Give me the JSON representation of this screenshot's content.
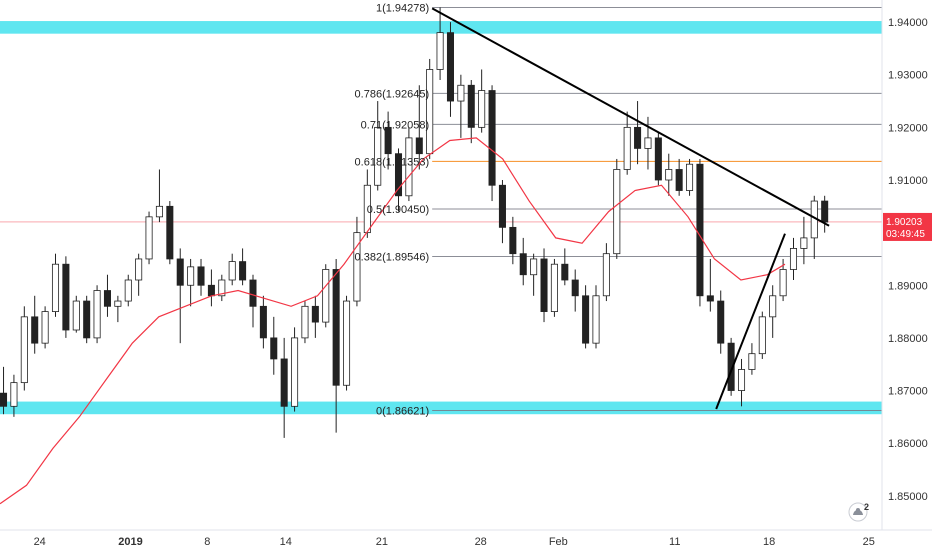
{
  "chart_data": {
    "type": "candlestick",
    "title": "",
    "xlabel": "",
    "ylabel": "",
    "ylim": [
      1.8435,
      1.9442
    ],
    "grid": false,
    "x_tick_labels": [
      "24",
      "2019",
      "8",
      "14",
      "21",
      "28",
      "Feb",
      "11",
      "18",
      "25"
    ],
    "y_tick_labels": [
      "1.94000",
      "1.93000",
      "1.92000",
      "1.91000",
      "1.90000",
      "1.89000",
      "1.88000",
      "1.87000",
      "1.86000",
      "1.85000"
    ],
    "y_ticks": [
      1.94,
      1.93,
      1.92,
      1.91,
      1.9,
      1.89,
      1.88,
      1.87,
      1.86,
      1.85
    ],
    "current_price": {
      "value": 1.90203,
      "label": "1.90203",
      "countdown": "03:49:45",
      "color": "#f23645"
    },
    "fib_levels": [
      {
        "ratio": 1,
        "price": 1.94278,
        "label": "1(1.94278)",
        "color": "#787b86"
      },
      {
        "ratio": 0.786,
        "price": 1.92645,
        "label": "0.786(1.92645)",
        "color": "#787b86"
      },
      {
        "ratio": 0.71,
        "price": 1.92058,
        "label": "0.71(1.92058)",
        "color": "#787b86"
      },
      {
        "ratio": 0.618,
        "price": 1.91353,
        "label": "0.618(1.91353)",
        "color": "#f57c00"
      },
      {
        "ratio": 0.5,
        "price": 1.9045,
        "label": "0.5(1.90450)",
        "color": "#787b86"
      },
      {
        "ratio": 0.382,
        "price": 1.89546,
        "label": "0.382(1.89546)",
        "color": "#787b86"
      },
      {
        "ratio": 0,
        "price": 1.86621,
        "label": "0(1.86621)",
        "color": "#787b86"
      }
    ],
    "zones": [
      {
        "from": 1.9378,
        "to": 1.9402,
        "color": "#5fe6f0"
      },
      {
        "from": 1.8655,
        "to": 1.8679,
        "color": "#5fe6f0"
      }
    ],
    "trendlines": [
      {
        "from": [
          0.49,
          1.9426
        ],
        "to": [
          0.94,
          1.9013
        ],
        "color": "#000000"
      },
      {
        "from": [
          0.812,
          1.8665
        ],
        "to": [
          0.89,
          1.8998
        ],
        "color": "#000000"
      }
    ],
    "candles": [
      [
        1.8695,
        1.8745,
        1.8655,
        1.867
      ],
      [
        1.867,
        1.873,
        1.865,
        1.8715
      ],
      [
        1.8715,
        1.886,
        1.87,
        1.884
      ],
      [
        1.884,
        1.888,
        1.877,
        1.879
      ],
      [
        1.879,
        1.886,
        1.878,
        1.885
      ],
      [
        1.885,
        1.896,
        1.884,
        1.894
      ],
      [
        1.894,
        1.8955,
        1.88,
        1.8815
      ],
      [
        1.8815,
        1.888,
        1.881,
        1.887
      ],
      [
        1.887,
        1.888,
        1.879,
        1.88
      ],
      [
        1.88,
        1.89,
        1.879,
        1.889
      ],
      [
        1.889,
        1.892,
        1.884,
        1.886
      ],
      [
        1.886,
        1.888,
        1.883,
        1.887
      ],
      [
        1.887,
        1.892,
        1.886,
        1.891
      ],
      [
        1.891,
        1.896,
        1.888,
        1.895
      ],
      [
        1.895,
        1.904,
        1.894,
        1.903
      ],
      [
        1.903,
        1.912,
        1.902,
        1.905
      ],
      [
        1.905,
        1.906,
        1.894,
        1.895
      ],
      [
        1.895,
        1.897,
        1.879,
        1.89
      ],
      [
        1.89,
        1.895,
        1.886,
        1.8935
      ],
      [
        1.8935,
        1.895,
        1.888,
        1.89
      ],
      [
        1.89,
        1.893,
        1.886,
        1.888
      ],
      [
        1.888,
        1.892,
        1.887,
        1.891
      ],
      [
        1.891,
        1.896,
        1.89,
        1.8945
      ],
      [
        1.8945,
        1.897,
        1.89,
        1.891
      ],
      [
        1.891,
        1.892,
        1.882,
        1.886
      ],
      [
        1.886,
        1.888,
        1.878,
        1.88
      ],
      [
        1.88,
        1.884,
        1.873,
        1.876
      ],
      [
        1.876,
        1.88,
        1.861,
        1.867
      ],
      [
        1.867,
        1.882,
        1.866,
        1.88
      ],
      [
        1.88,
        1.887,
        1.879,
        1.886
      ],
      [
        1.886,
        1.888,
        1.88,
        1.883
      ],
      [
        1.883,
        1.894,
        1.882,
        1.893
      ],
      [
        1.893,
        1.895,
        1.862,
        1.871
      ],
      [
        1.871,
        1.888,
        1.87,
        1.887
      ],
      [
        1.887,
        1.903,
        1.886,
        1.9
      ],
      [
        1.9,
        1.912,
        1.899,
        1.909
      ],
      [
        1.909,
        1.925,
        1.908,
        1.92
      ],
      [
        1.92,
        1.923,
        1.912,
        1.915
      ],
      [
        1.915,
        1.916,
        1.904,
        1.907
      ],
      [
        1.907,
        1.92,
        1.906,
        1.918
      ],
      [
        1.918,
        1.928,
        1.912,
        1.915
      ],
      [
        1.915,
        1.933,
        1.914,
        1.931
      ],
      [
        1.931,
        1.9428,
        1.929,
        1.938
      ],
      [
        1.938,
        1.94,
        1.922,
        1.925
      ],
      [
        1.925,
        1.93,
        1.918,
        1.928
      ],
      [
        1.928,
        1.929,
        1.917,
        1.92
      ],
      [
        1.92,
        1.931,
        1.919,
        1.927
      ],
      [
        1.927,
        1.928,
        1.906,
        1.909
      ],
      [
        1.909,
        1.91,
        1.898,
        1.901
      ],
      [
        1.901,
        1.903,
        1.894,
        1.896
      ],
      [
        1.896,
        1.899,
        1.89,
        1.892
      ],
      [
        1.892,
        1.896,
        1.888,
        1.895
      ],
      [
        1.895,
        1.897,
        1.883,
        1.885
      ],
      [
        1.885,
        1.895,
        1.884,
        1.894
      ],
      [
        1.894,
        1.897,
        1.89,
        1.891
      ],
      [
        1.891,
        1.893,
        1.885,
        1.888
      ],
      [
        1.888,
        1.89,
        1.878,
        1.879
      ],
      [
        1.879,
        1.89,
        1.878,
        1.888
      ],
      [
        1.888,
        1.898,
        1.887,
        1.896
      ],
      [
        1.896,
        1.914,
        1.895,
        1.912
      ],
      [
        1.912,
        1.923,
        1.911,
        1.92
      ],
      [
        1.92,
        1.925,
        1.913,
        1.916
      ],
      [
        1.916,
        1.922,
        1.912,
        1.918
      ],
      [
        1.918,
        1.919,
        1.909,
        1.91
      ],
      [
        1.91,
        1.915,
        1.907,
        1.912
      ],
      [
        1.912,
        1.914,
        1.907,
        1.908
      ],
      [
        1.908,
        1.914,
        1.907,
        1.913
      ],
      [
        1.913,
        1.914,
        1.886,
        1.888
      ],
      [
        1.888,
        1.895,
        1.885,
        1.887
      ],
      [
        1.887,
        1.889,
        1.877,
        1.879
      ],
      [
        1.879,
        1.88,
        1.869,
        1.87
      ],
      [
        1.87,
        1.876,
        1.867,
        1.874
      ],
      [
        1.874,
        1.879,
        1.873,
        1.877
      ],
      [
        1.877,
        1.885,
        1.876,
        1.884
      ],
      [
        1.884,
        1.89,
        1.88,
        1.888
      ],
      [
        1.888,
        1.895,
        1.887,
        1.893
      ],
      [
        1.893,
        1.899,
        1.891,
        1.897
      ],
      [
        1.897,
        1.903,
        1.894,
        1.899
      ],
      [
        1.899,
        1.907,
        1.895,
        1.906
      ],
      [
        1.906,
        1.907,
        1.9,
        1.902
      ]
    ],
    "moving_average": {
      "color": "#f23645",
      "start_price": 1.8485,
      "points": [
        [
          0.0,
          1.8485
        ],
        [
          0.03,
          1.852
        ],
        [
          0.06,
          1.859
        ],
        [
          0.09,
          1.865
        ],
        [
          0.12,
          1.872
        ],
        [
          0.15,
          1.879
        ],
        [
          0.18,
          1.884
        ],
        [
          0.21,
          1.886
        ],
        [
          0.24,
          1.888
        ],
        [
          0.27,
          1.889
        ],
        [
          0.3,
          1.8875
        ],
        [
          0.33,
          1.886
        ],
        [
          0.36,
          1.888
        ],
        [
          0.39,
          1.894
        ],
        [
          0.42,
          1.901
        ],
        [
          0.45,
          1.908
        ],
        [
          0.48,
          1.914
        ],
        [
          0.51,
          1.9175
        ],
        [
          0.54,
          1.918
        ],
        [
          0.57,
          1.914
        ],
        [
          0.6,
          1.906
        ],
        [
          0.63,
          1.899
        ],
        [
          0.66,
          1.898
        ],
        [
          0.69,
          1.904
        ],
        [
          0.72,
          1.908
        ],
        [
          0.75,
          1.909
        ],
        [
          0.78,
          1.903
        ],
        [
          0.81,
          1.895
        ],
        [
          0.84,
          1.891
        ],
        [
          0.87,
          1.892
        ],
        [
          0.89,
          1.894
        ]
      ]
    }
  },
  "price_tag": {
    "value": "1.90203",
    "countdown": "03:49:45"
  },
  "widget": {
    "badge": "2"
  }
}
